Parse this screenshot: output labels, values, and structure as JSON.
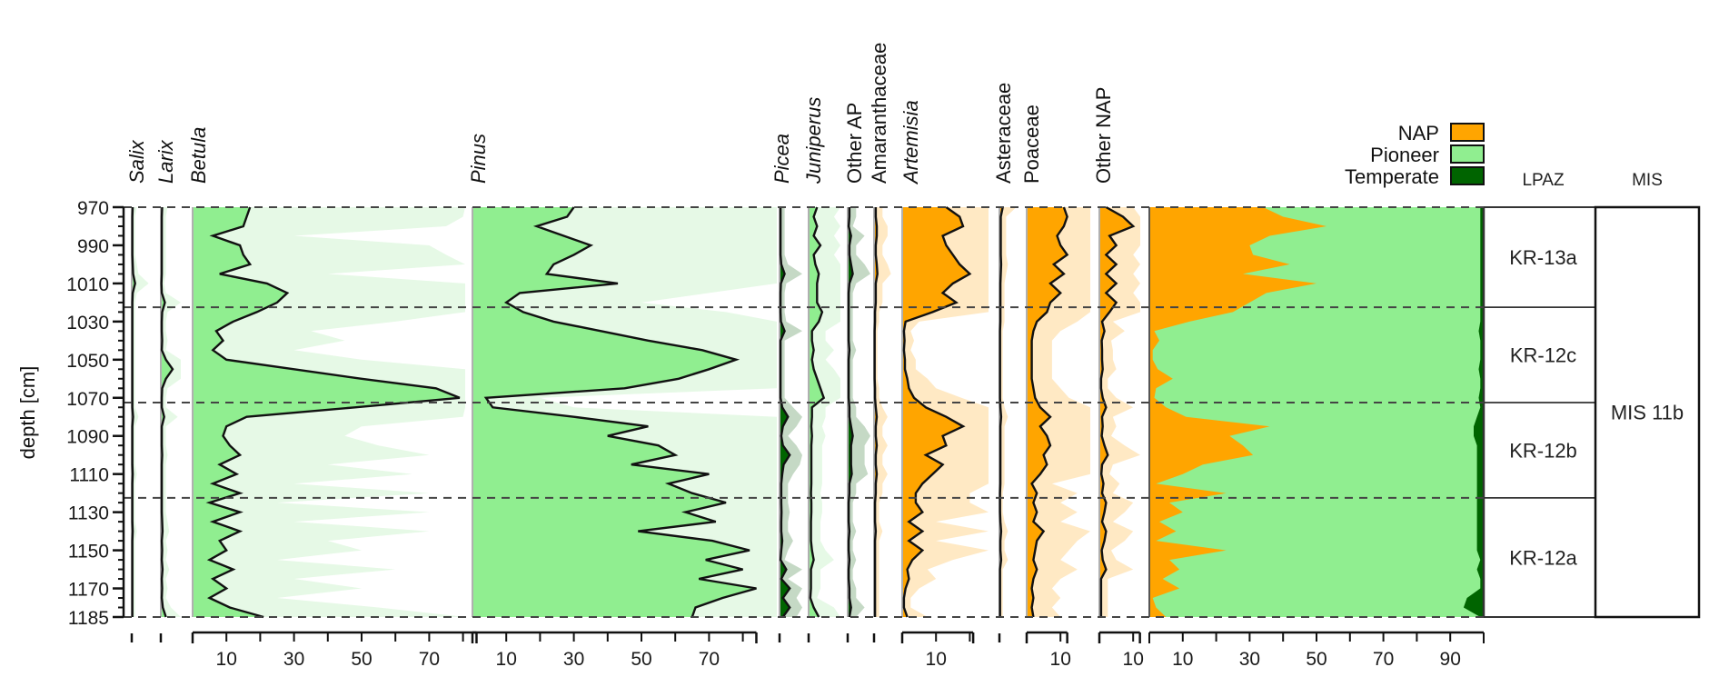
{
  "chart_data": {
    "type": "area",
    "title": "",
    "ylabel": "depth [cm]",
    "ylim": [
      970,
      1185
    ],
    "y_ticks": [
      970,
      990,
      1010,
      1030,
      1050,
      1070,
      1090,
      1110,
      1130,
      1150,
      1170,
      1185
    ],
    "y_minor_step": 5,
    "grid": false,
    "depths": [
      970,
      975,
      980,
      985,
      990,
      995,
      1000,
      1005,
      1010,
      1015,
      1020,
      1025,
      1030,
      1035,
      1040,
      1045,
      1050,
      1055,
      1060,
      1065,
      1070,
      1075,
      1080,
      1085,
      1090,
      1095,
      1100,
      1105,
      1110,
      1115,
      1120,
      1125,
      1130,
      1135,
      1140,
      1145,
      1150,
      1155,
      1160,
      1165,
      1170,
      1175,
      1180,
      1185
    ],
    "zone_boundaries": [
      970,
      1022.5,
      1072.5,
      1122.5,
      1185
    ],
    "exaggeration_factor": 5,
    "panels": [
      {
        "name": "Salix",
        "italic": true,
        "group": "pioneer",
        "scale_ticks": [],
        "values": [
          0.3,
          0.2,
          0.2,
          0.2,
          0.2,
          0.2,
          0.3,
          0.4,
          1.0,
          0.3,
          0.2,
          0.2,
          0.2,
          0.2,
          0.2,
          0.2,
          0.2,
          0.2,
          0.2,
          0.2,
          0.2,
          0.2,
          0.4,
          0.2,
          0.2,
          0.2,
          0.2,
          0.2,
          0.3,
          0.2,
          0.2,
          0.2,
          0.2,
          0.2,
          0.3,
          0.2,
          0.2,
          0.2,
          0.2,
          0.2,
          0.2,
          0.2,
          0.2,
          0.2
        ]
      },
      {
        "name": "Larix",
        "italic": true,
        "group": "pioneer",
        "scale_ticks": [],
        "values": [
          0.4,
          0.3,
          0.3,
          0.3,
          0.3,
          0.3,
          0.3,
          0.3,
          0.2,
          0.3,
          1.2,
          0.4,
          0.3,
          0.3,
          0.4,
          0.3,
          1.5,
          3.5,
          1.5,
          0.4,
          0.3,
          0.3,
          1.0,
          0.3,
          0.3,
          0.3,
          0.4,
          0.3,
          0.3,
          0.3,
          0.3,
          0.3,
          0.3,
          0.4,
          0.5,
          0.3,
          0.4,
          0.3,
          0.5,
          0.3,
          0.4,
          0.3,
          0.6,
          1.5
        ]
      },
      {
        "name": "Betula",
        "italic": true,
        "group": "pioneer",
        "scale_ticks": [
          10,
          30,
          50,
          70
        ],
        "scale_max": 84,
        "values": [
          17,
          16,
          15,
          6,
          14,
          15,
          17,
          8,
          22,
          28,
          25,
          19,
          12,
          7,
          9,
          6,
          10,
          30,
          50,
          72,
          79,
          48,
          16,
          10,
          9,
          11,
          14,
          8,
          13,
          6,
          14,
          5,
          14,
          6,
          14,
          8,
          10,
          5,
          12,
          6,
          10,
          5,
          11,
          21
        ]
      },
      {
        "name": "Pinus",
        "italic": true,
        "group": "pioneer",
        "scale_ticks": [
          10,
          30,
          50,
          70
        ],
        "scale_max": 84,
        "values": [
          30,
          28,
          19,
          27,
          35,
          30,
          24,
          22,
          43,
          14,
          10,
          15,
          24,
          38,
          52,
          68,
          78,
          70,
          61,
          45,
          4,
          6,
          30,
          52,
          40,
          55,
          60,
          47,
          70,
          58,
          65,
          75,
          63,
          72,
          49,
          71,
          82,
          69,
          80,
          67,
          84,
          74,
          66,
          65
        ]
      },
      {
        "name": "Picea",
        "italic": true,
        "group": "temperate",
        "scale_ticks": [],
        "values": [
          0.3,
          0.3,
          0.3,
          0.3,
          0.3,
          0.3,
          0.5,
          1.5,
          0.4,
          0.3,
          0.3,
          0.3,
          0.4,
          1.5,
          0.3,
          0.3,
          0.3,
          0.3,
          0.3,
          0.3,
          0.3,
          0.8,
          2.5,
          1.0,
          0.5,
          1.0,
          3.0,
          1.2,
          0.8,
          0.5,
          0.5,
          0.5,
          0.6,
          0.5,
          0.5,
          0.8,
          0.5,
          0.3,
          2.0,
          0.5,
          3.0,
          1.0,
          3.0,
          1.0
        ]
      },
      {
        "name": "Juniperus",
        "italic": true,
        "group": "pioneer",
        "scale_ticks": [],
        "values": [
          2.5,
          1.5,
          2.5,
          1.5,
          3.5,
          1.5,
          2.0,
          3.0,
          2.5,
          2.5,
          2.5,
          4.0,
          3.0,
          1.0,
          1.0,
          1.5,
          1.0,
          1.5,
          2.5,
          3.5,
          4.5,
          1.0,
          1.0,
          0.8,
          1.0,
          0.8,
          0.8,
          0.8,
          0.8,
          0.8,
          0.7,
          0.8,
          0.8,
          0.7,
          0.7,
          0.7,
          1.0,
          1.5,
          0.7,
          0.7,
          0.7,
          0.5,
          1.5,
          3.0
        ]
      },
      {
        "name": "Other AP",
        "italic": false,
        "group": "temperate",
        "scale_ticks": [],
        "values": [
          0.5,
          0.5,
          0.3,
          1.0,
          0.5,
          0.5,
          1.0,
          1.5,
          0.5,
          0.3,
          0.3,
          0.3,
          0.3,
          0.3,
          0.3,
          0.5,
          0.3,
          0.3,
          0.3,
          0.3,
          0.3,
          0.5,
          0.5,
          1.0,
          1.5,
          1.0,
          1.0,
          1.0,
          1.2,
          0.5,
          0.5,
          0.3,
          0.3,
          0.3,
          0.5,
          0.3,
          0.3,
          0.5,
          0.3,
          0.3,
          0.5,
          0.5,
          1.0,
          0.5
        ]
      },
      {
        "name": "Amaranthaceae",
        "italic": false,
        "group": "nap",
        "scale_ticks": [],
        "values": [
          0.5,
          0.5,
          0.8,
          0.8,
          0.5,
          0.5,
          0.8,
          1.0,
          0.5,
          0.5,
          0.5,
          0.3,
          0.3,
          0.2,
          0.2,
          0.2,
          0.2,
          0.2,
          0.2,
          0.3,
          0.3,
          0.5,
          0.8,
          0.5,
          0.5,
          0.8,
          0.5,
          0.5,
          0.8,
          0.5,
          0.5,
          0.3,
          0.3,
          0.3,
          0.5,
          0.3,
          0.3,
          0.3,
          0.3,
          0.3,
          0.3,
          0.3,
          0.3,
          0.3
        ]
      },
      {
        "name": "Artemisia",
        "italic": true,
        "group": "nap",
        "scale_ticks": [
          10
        ],
        "scale_max": 21,
        "values": [
          13,
          17,
          18,
          12,
          13,
          15,
          17,
          20,
          15,
          12,
          16,
          9,
          1,
          0.5,
          0.7,
          0.5,
          0.8,
          0.8,
          1.5,
          2.0,
          3.5,
          7,
          13,
          18,
          12,
          13,
          7,
          12,
          9,
          6,
          4,
          4,
          6,
          2,
          6,
          2,
          6,
          3,
          1.5,
          2,
          1,
          0.5,
          0.5,
          1.5
        ]
      },
      {
        "name": "Asteraceae",
        "italic": false,
        "group": "nap",
        "scale_ticks": [],
        "values": [
          1.0,
          0.4,
          0.4,
          0.4,
          0.4,
          0.4,
          0.5,
          0.4,
          0.3,
          0.3,
          0.3,
          0.3,
          0.3,
          0.2,
          0.2,
          0.2,
          0.2,
          0.2,
          0.2,
          0.2,
          0.2,
          0.3,
          0.5,
          0.3,
          0.3,
          0.3,
          0.3,
          0.3,
          0.3,
          0.3,
          0.2,
          0.2,
          0.2,
          0.3,
          0.5,
          0.3,
          0.3,
          0.5,
          0.2,
          0.2,
          0.2,
          0.2,
          0.2,
          0.2
        ]
      },
      {
        "name": "Poaceae",
        "italic": false,
        "group": "nap",
        "scale_ticks": [
          10
        ],
        "scale_max": 12,
        "values": [
          11,
          12,
          11,
          9,
          10,
          12,
          8,
          11,
          7,
          10,
          7,
          6,
          3,
          2,
          1.5,
          1.5,
          1.5,
          1.5,
          1.5,
          2,
          2.5,
          4,
          7,
          4,
          6,
          7,
          5,
          6,
          4,
          1.5,
          3,
          2,
          3,
          2,
          5,
          3,
          2.5,
          2,
          3,
          2,
          1.5,
          2,
          1.5,
          2
        ]
      },
      {
        "name": "Other NAP",
        "italic": false,
        "group": "nap",
        "scale_ticks": [
          10
        ],
        "scale_max": 12,
        "values": [
          2,
          7,
          10,
          3,
          5,
          2,
          5,
          2,
          5,
          2,
          5,
          3,
          0.8,
          1.5,
          0.7,
          0.8,
          0.8,
          1,
          0.5,
          0.5,
          1,
          2,
          0.8,
          1,
          0.7,
          1.5,
          2.5,
          0.8,
          0.6,
          1.2,
          0.8,
          2,
          1.5,
          0.8,
          2,
          1.5,
          0.7,
          1,
          2,
          0.5,
          0.5,
          0.5,
          0.5,
          0.5
        ]
      }
    ],
    "summary": {
      "title": "",
      "scale_ticks": [
        10,
        30,
        50,
        70,
        90
      ],
      "xlim": [
        0,
        100
      ],
      "series": [
        {
          "name": "NAP",
          "color": "#ffa500",
          "values": [
            34,
            40,
            53,
            36,
            30,
            31,
            42,
            28,
            50,
            35,
            30,
            25,
            12,
            1.5,
            3,
            1,
            1,
            2.5,
            7,
            2,
            1.5,
            5,
            11,
            36,
            24,
            28,
            31,
            16,
            10,
            2,
            23,
            6,
            10,
            3,
            8,
            2,
            23,
            6,
            9,
            4,
            9,
            1,
            2,
            5
          ]
        },
        {
          "name": "Pioneer",
          "color": "#90ee90",
          "values": [
            65,
            59,
            46,
            63,
            69,
            68,
            57,
            71,
            49,
            64,
            69,
            74,
            87,
            97,
            96,
            98,
            98,
            96,
            92,
            97,
            97,
            94,
            87,
            61,
            73,
            70,
            67,
            82,
            88,
            96,
            75,
            92,
            88,
            95,
            90,
            96,
            75,
            93,
            89,
            95,
            90,
            94,
            92,
            94
          ]
        },
        {
          "name": "Temperate",
          "color": "#006400",
          "values": [
            1,
            1,
            1,
            1,
            1,
            1,
            1,
            1,
            1,
            1,
            1,
            1,
            1,
            1.5,
            1,
            1,
            1,
            1.5,
            1,
            1,
            1.5,
            1,
            2,
            3,
            3,
            2,
            2,
            2,
            2,
            2,
            2,
            2,
            2,
            2,
            2,
            2,
            2,
            1,
            2,
            1,
            1,
            5,
            6,
            1
          ]
        }
      ]
    },
    "legend": {
      "placement": "top-right",
      "items": [
        {
          "label": "NAP",
          "color": "#ffa500"
        },
        {
          "label": "Pioneer",
          "color": "#90ee90"
        },
        {
          "label": "Temperate",
          "color": "#006400"
        }
      ]
    },
    "lpaz": {
      "header": "LPAZ",
      "zones": [
        {
          "label": "KR-13a",
          "top": 970,
          "bottom": 1022.5
        },
        {
          "label": "KR-12c",
          "top": 1022.5,
          "bottom": 1072.5
        },
        {
          "label": "KR-12b",
          "top": 1072.5,
          "bottom": 1122.5
        },
        {
          "label": "KR-12a",
          "top": 1122.5,
          "bottom": 1185
        }
      ]
    },
    "mis": {
      "header": "MIS",
      "zones": [
        {
          "label": "MIS 11b",
          "top": 970,
          "bottom": 1185
        }
      ]
    }
  },
  "colors": {
    "pioneer": "#90ee90",
    "pioneer_light": "#e6f9e6",
    "temperate": "#006400",
    "temperate_light": "#c5d9c5",
    "nap": "#ffa500",
    "nap_light": "#ffe9c4"
  }
}
